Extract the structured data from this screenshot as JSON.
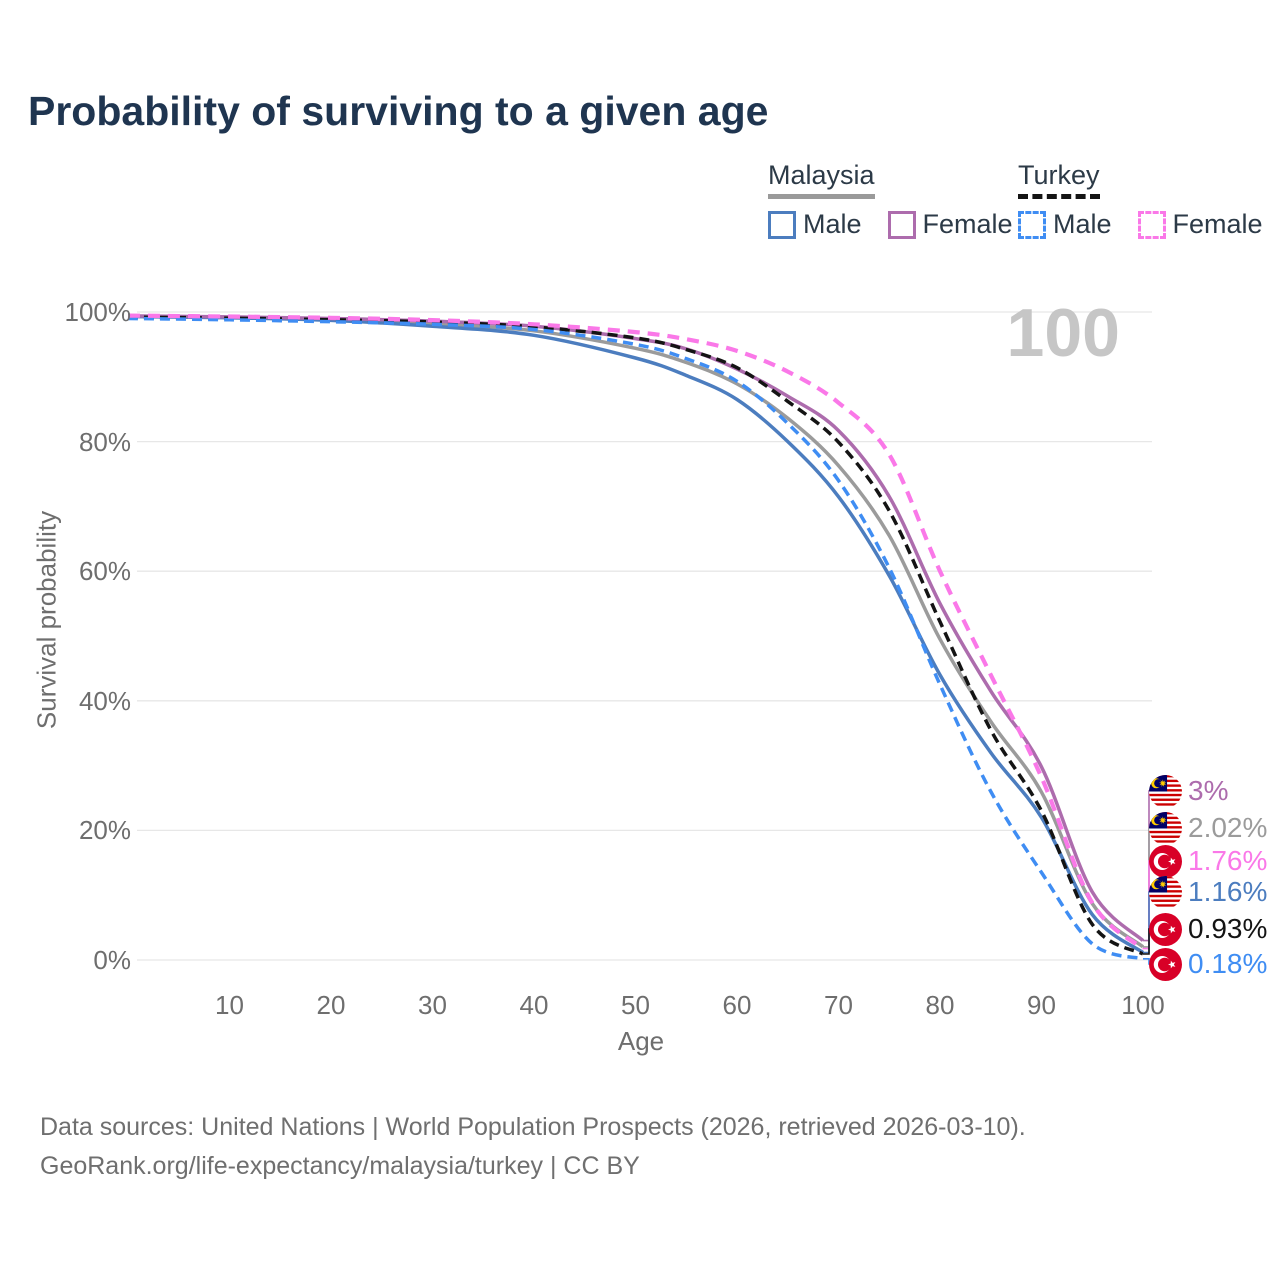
{
  "title": "Probability of surviving to a given age",
  "watermark": "100",
  "legend": {
    "groups": [
      {
        "country": "Malaysia",
        "underline_style": "solid",
        "underline_color": "#9a9a9a",
        "items": [
          {
            "label": "Male",
            "color": "#4c7dbf",
            "dash": false
          },
          {
            "label": "Female",
            "color": "#ad6cad",
            "dash": false
          }
        ]
      },
      {
        "country": "Turkey",
        "underline_style": "dashed",
        "underline_color": "#141414",
        "items": [
          {
            "label": "Male",
            "color": "#3f8df3",
            "dash": true
          },
          {
            "label": "Female",
            "color": "#fa78e8",
            "dash": true
          }
        ]
      }
    ]
  },
  "chart_data": {
    "type": "line",
    "title": "Probability of surviving to a given age",
    "xlabel": "Age",
    "ylabel": "Survival probability",
    "xlim": [
      0,
      100
    ],
    "ylim": [
      0,
      100
    ],
    "grid": true,
    "x_ticks": [
      10,
      20,
      30,
      40,
      50,
      60,
      70,
      80,
      90,
      100
    ],
    "y_ticks": [
      {
        "label": "100%",
        "value": 100
      },
      {
        "label": "80%",
        "value": 80
      },
      {
        "label": "60%",
        "value": 60
      },
      {
        "label": "40%",
        "value": 40
      },
      {
        "label": "20%",
        "value": 20
      },
      {
        "label": "0%",
        "value": 0
      }
    ],
    "x": [
      0,
      10,
      20,
      30,
      40,
      50,
      55,
      60,
      65,
      70,
      75,
      80,
      85,
      90,
      95,
      100
    ],
    "series": [
      {
        "name": "Malaysia",
        "color": "#9b9b9b",
        "dash": "solid",
        "values": [
          99.35,
          99.18,
          98.85,
          98.2,
          97.1,
          94.4,
          92.2,
          88.9,
          83.6,
          76.3,
          65.5,
          49.5,
          36.8,
          25.9,
          8.7,
          2.02
        ],
        "end_label": "2.02%",
        "flag": "malaysia"
      },
      {
        "name": "Malaysia Male",
        "color": "#4c7dbf",
        "dash": "solid",
        "values": [
          99.3,
          99.1,
          98.7,
          97.8,
          96.4,
          92.9,
          90.2,
          86.5,
          80.0,
          71.5,
          59.3,
          44.0,
          32.0,
          22.0,
          7.0,
          1.16
        ],
        "end_label": "1.16%",
        "flag": "malaysia"
      },
      {
        "name": "Malaysia Female",
        "color": "#ad6cad",
        "dash": "solid",
        "values": [
          99.4,
          99.25,
          99.0,
          98.6,
          97.8,
          95.9,
          94.3,
          91.2,
          87.0,
          81.7,
          71.5,
          55.0,
          41.5,
          29.8,
          10.5,
          3.0
        ],
        "end_label": "3%",
        "flag": "malaysia"
      },
      {
        "name": "Turkey",
        "color": "#141414",
        "dash": "dashed",
        "values": [
          99.2,
          99.05,
          98.8,
          98.45,
          97.7,
          96.0,
          94.2,
          91.4,
          86.2,
          79.9,
          69.3,
          52.2,
          35.5,
          23.0,
          5.5,
          0.93
        ],
        "end_label": "0.93%",
        "flag": "turkey"
      },
      {
        "name": "Turkey Male",
        "color": "#3f8df3",
        "dash": "dashed",
        "values": [
          99.0,
          98.8,
          98.5,
          98.1,
          97.3,
          95.0,
          92.8,
          89.3,
          82.8,
          74.0,
          60.5,
          42.5,
          26.0,
          13.5,
          2.5,
          0.18
        ],
        "end_label": "0.18%",
        "flag": "turkey"
      },
      {
        "name": "Turkey Female",
        "color": "#fa78e8",
        "dash": "dashed",
        "values": [
          99.45,
          99.3,
          99.1,
          98.75,
          98.1,
          96.9,
          95.8,
          94.0,
          90.8,
          86.0,
          78.0,
          60.0,
          44.0,
          28.2,
          8.8,
          1.76
        ],
        "end_label": "1.76%",
        "flag": "turkey"
      }
    ]
  },
  "source": {
    "line1": "Data sources: United Nations | World Population Prospects (2026, retrieved 2026-03-10).",
    "line2": "GeoRank.org/life-expectancy/malaysia/turkey | CC BY"
  }
}
